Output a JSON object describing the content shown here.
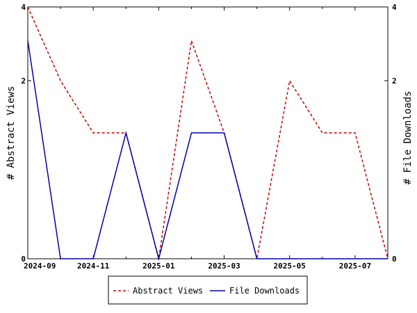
{
  "chart_data": {
    "type": "line",
    "x": [
      "2024-09",
      "2024-10",
      "2024-11",
      "2024-12",
      "2025-01",
      "2025-02",
      "2025-03",
      "2025-04",
      "2025-05",
      "2025-06",
      "2025-07",
      "2025-08"
    ],
    "x_tick_labels": [
      "2024-09",
      "2024-11",
      "2025-01",
      "2025-03",
      "2025-05",
      "2025-07"
    ],
    "y_left_label": "# Abstract Views",
    "y_right_label": "# File Downloads",
    "y_left_ticks": [
      "0",
      "2",
      "4"
    ],
    "y_right_ticks": [
      "0",
      "2",
      "4"
    ],
    "y_left_scale": "sqrt",
    "y_right_scale": "sqrt",
    "ylim": [
      0,
      4
    ],
    "grid": false,
    "legend_position": "bottom",
    "series": [
      {
        "name": "Abstract Views",
        "axis": "left",
        "color": "#cc0000",
        "dash": "dashed",
        "values": [
          4,
          2,
          1,
          1,
          0,
          3,
          1,
          0,
          2,
          1,
          1,
          0
        ]
      },
      {
        "name": "File Downloads",
        "axis": "right",
        "color": "#0000aa",
        "dash": "solid",
        "values": [
          3,
          0,
          0,
          1,
          0,
          1,
          1,
          0,
          0,
          0,
          0,
          0
        ]
      }
    ]
  }
}
